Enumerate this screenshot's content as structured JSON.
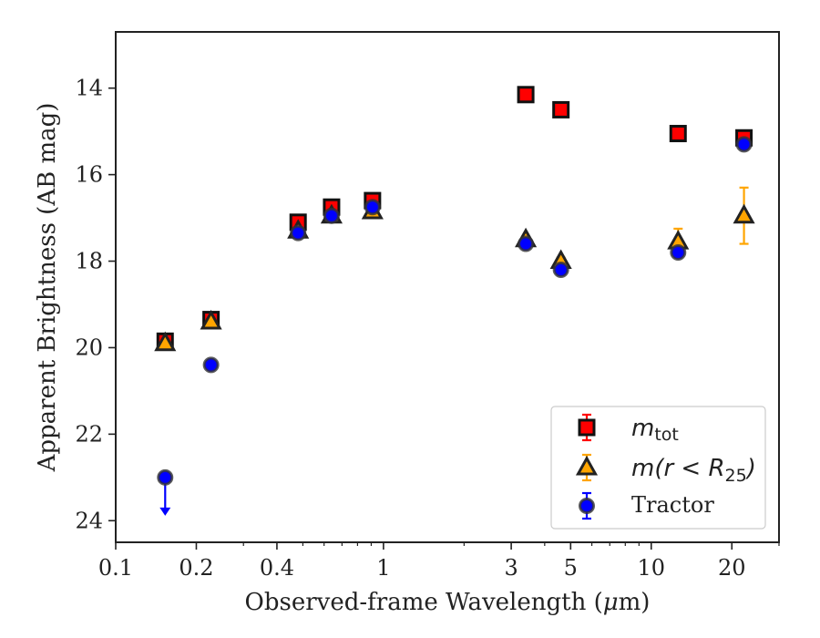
{
  "chart_data": {
    "type": "scatter",
    "xlabel_main": "Observed-frame Wavelength (",
    "xlabel_mu": "μ",
    "xlabel_end": "m)",
    "ylabel": "Apparent Brightness (AB mag)",
    "x_scale": "log",
    "xlim": [
      0.1,
      30
    ],
    "ylim": [
      24.5,
      12.7
    ],
    "y_inverted": true,
    "grid": false,
    "legend_position": "lower-right",
    "x_ticks": [
      {
        "value": 0.1,
        "label": "0.1"
      },
      {
        "value": 0.2,
        "label": "0.2"
      },
      {
        "value": 0.4,
        "label": "0.4"
      },
      {
        "value": 1,
        "label": "1"
      },
      {
        "value": 3,
        "label": "3"
      },
      {
        "value": 5,
        "label": "5"
      },
      {
        "value": 10,
        "label": "10"
      },
      {
        "value": 20,
        "label": "20"
      }
    ],
    "y_ticks": [
      {
        "value": 14,
        "label": "14"
      },
      {
        "value": 16,
        "label": "16"
      },
      {
        "value": 18,
        "label": "18"
      },
      {
        "value": 20,
        "label": "20"
      },
      {
        "value": 22,
        "label": "22"
      },
      {
        "value": 24,
        "label": "24"
      }
    ],
    "series": [
      {
        "name_base": "m",
        "name_sub": "tot",
        "marker": "square",
        "color": "#ff0000",
        "edge": "#111111",
        "points": [
          {
            "x": 0.153,
            "y": 19.85,
            "err": 0.08
          },
          {
            "x": 0.227,
            "y": 19.35,
            "err": 0.06
          },
          {
            "x": 0.48,
            "y": 17.1,
            "err": 0.05
          },
          {
            "x": 0.64,
            "y": 16.75,
            "err": 0.05
          },
          {
            "x": 0.91,
            "y": 16.6,
            "err": 0.05
          },
          {
            "x": 3.4,
            "y": 14.15,
            "err": 0.03
          },
          {
            "x": 4.6,
            "y": 14.5,
            "err": 0.03
          },
          {
            "x": 12.6,
            "y": 15.05,
            "err": 0.04
          },
          {
            "x": 22.2,
            "y": 15.15,
            "err": 0.06
          }
        ]
      },
      {
        "name_base": "m(r < R",
        "name_sub": "25",
        "name_end": ")",
        "marker": "triangle",
        "color": "#ffa500",
        "edge": "#222222",
        "points": [
          {
            "x": 0.153,
            "y": 19.9,
            "err": 0.05
          },
          {
            "x": 0.227,
            "y": 19.4,
            "err": 0.05
          },
          {
            "x": 0.48,
            "y": 17.3,
            "err": 0.05
          },
          {
            "x": 0.64,
            "y": 16.95,
            "err": 0.05
          },
          {
            "x": 0.91,
            "y": 16.85,
            "err": 0.05
          },
          {
            "x": 3.4,
            "y": 17.5,
            "err": 0.06
          },
          {
            "x": 4.6,
            "y": 18.0,
            "err": 0.08
          },
          {
            "x": 12.6,
            "y": 17.55,
            "err": 0.3
          },
          {
            "x": 22.2,
            "y": 16.95,
            "err": 0.65
          }
        ]
      },
      {
        "name": "Tractor",
        "marker": "circle",
        "color": "#0000ff",
        "edge": "#333333",
        "points": [
          {
            "x": 0.153,
            "y": 23.0,
            "err": 0,
            "upper_limit": true
          },
          {
            "x": 0.227,
            "y": 20.4,
            "err": 0.05
          },
          {
            "x": 0.48,
            "y": 17.35,
            "err": 0.05
          },
          {
            "x": 0.64,
            "y": 16.95,
            "err": 0.05
          },
          {
            "x": 0.91,
            "y": 16.75,
            "err": 0.05
          },
          {
            "x": 3.4,
            "y": 17.6,
            "err": 0.05
          },
          {
            "x": 4.6,
            "y": 18.2,
            "err": 0.06
          },
          {
            "x": 12.6,
            "y": 17.8,
            "err": 0.06
          },
          {
            "x": 22.2,
            "y": 15.3,
            "err": 0.08
          }
        ]
      }
    ]
  }
}
